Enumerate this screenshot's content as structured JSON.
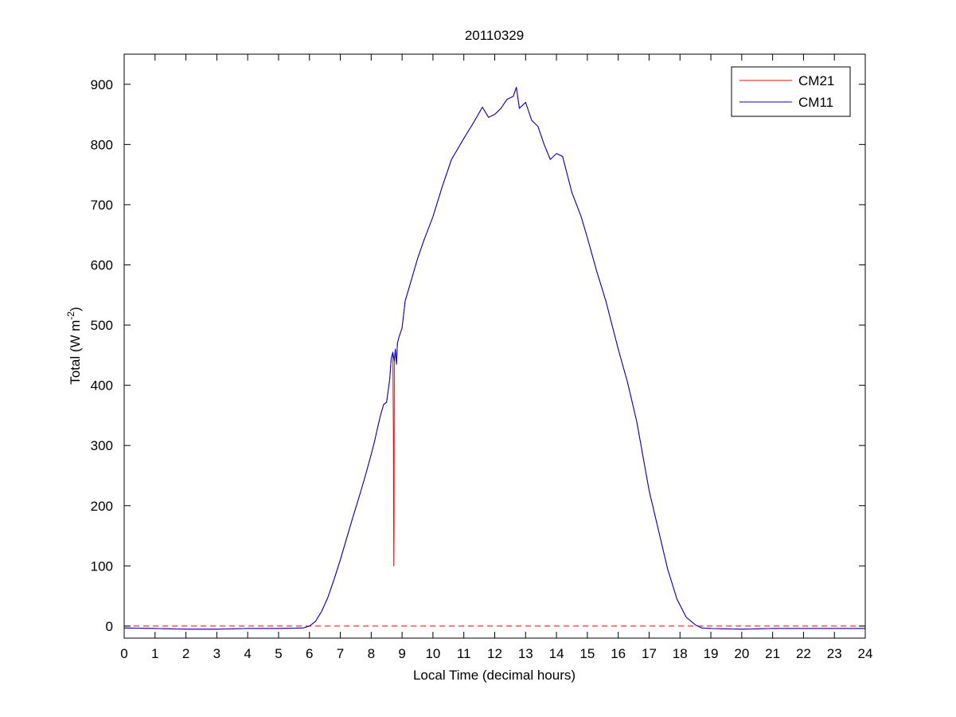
{
  "chart_data": {
    "type": "line",
    "title": "20110329",
    "xlabel": "Local Time (decimal hours)",
    "ylabel": {
      "main": "Total (W m",
      "sup": "-2",
      "end": ")"
    },
    "xlim": [
      0,
      24
    ],
    "ylim": [
      -20,
      950
    ],
    "xticks": [
      0,
      1,
      2,
      3,
      4,
      5,
      6,
      7,
      8,
      9,
      10,
      11,
      12,
      13,
      14,
      15,
      16,
      17,
      18,
      19,
      20,
      21,
      22,
      23,
      24
    ],
    "yticks": [
      0,
      100,
      200,
      300,
      400,
      500,
      600,
      700,
      800,
      900
    ],
    "grid": false,
    "legend": {
      "placement": "top-right",
      "entries": [
        "CM21",
        "CM11"
      ]
    },
    "reference_line": {
      "y": 0,
      "style": "dashed",
      "color": "#ff0000"
    },
    "series": [
      {
        "name": "CM21",
        "color": "#ff0000",
        "points": [
          [
            0,
            -3
          ],
          [
            1,
            -4
          ],
          [
            2,
            -5
          ],
          [
            3,
            -5
          ],
          [
            4,
            -4
          ],
          [
            5,
            -4
          ],
          [
            5.8,
            -3
          ],
          [
            6.0,
            0
          ],
          [
            6.2,
            8
          ],
          [
            6.4,
            25
          ],
          [
            6.6,
            48
          ],
          [
            6.8,
            78
          ],
          [
            7.0,
            110
          ],
          [
            7.2,
            145
          ],
          [
            7.4,
            180
          ],
          [
            7.6,
            213
          ],
          [
            7.8,
            248
          ],
          [
            8.0,
            285
          ],
          [
            8.1,
            305
          ],
          [
            8.2,
            328
          ],
          [
            8.3,
            350
          ],
          [
            8.4,
            368
          ],
          [
            8.5,
            372
          ],
          [
            8.6,
            410
          ],
          [
            8.65,
            445
          ],
          [
            8.7,
            455
          ],
          [
            8.72,
            300
          ],
          [
            8.73,
            100
          ],
          [
            8.74,
            160
          ],
          [
            8.75,
            440
          ],
          [
            8.78,
            460
          ],
          [
            8.82,
            435
          ],
          [
            8.85,
            470
          ],
          [
            8.9,
            480
          ],
          [
            9.0,
            495
          ],
          [
            9.1,
            540
          ],
          [
            9.3,
            575
          ],
          [
            9.5,
            610
          ],
          [
            9.7,
            640
          ],
          [
            10.0,
            680
          ],
          [
            10.3,
            730
          ],
          [
            10.6,
            775
          ],
          [
            11.0,
            810
          ],
          [
            11.3,
            835
          ],
          [
            11.6,
            862
          ],
          [
            11.8,
            845
          ],
          [
            12.0,
            850
          ],
          [
            12.2,
            860
          ],
          [
            12.4,
            875
          ],
          [
            12.6,
            880
          ],
          [
            12.7,
            895
          ],
          [
            12.8,
            860
          ],
          [
            13.0,
            870
          ],
          [
            13.2,
            840
          ],
          [
            13.4,
            830
          ],
          [
            13.6,
            800
          ],
          [
            13.8,
            775
          ],
          [
            14.0,
            785
          ],
          [
            14.2,
            780
          ],
          [
            14.5,
            720
          ],
          [
            14.8,
            680
          ],
          [
            15.0,
            645
          ],
          [
            15.3,
            590
          ],
          [
            15.6,
            540
          ],
          [
            16.0,
            460
          ],
          [
            16.3,
            405
          ],
          [
            16.6,
            340
          ],
          [
            17.0,
            225
          ],
          [
            17.3,
            160
          ],
          [
            17.6,
            95
          ],
          [
            17.9,
            45
          ],
          [
            18.2,
            15
          ],
          [
            18.5,
            2
          ],
          [
            18.7,
            -3
          ],
          [
            19.0,
            -4
          ],
          [
            20.0,
            -5
          ],
          [
            21.0,
            -4
          ],
          [
            22.0,
            -4
          ],
          [
            23.0,
            -4
          ],
          [
            24.0,
            -4
          ]
        ]
      },
      {
        "name": "CM11",
        "color": "#0000cc",
        "points": [
          [
            0,
            -3
          ],
          [
            1,
            -4
          ],
          [
            2,
            -5
          ],
          [
            3,
            -5
          ],
          [
            4,
            -4
          ],
          [
            5,
            -4
          ],
          [
            5.8,
            -3
          ],
          [
            6.0,
            0
          ],
          [
            6.2,
            8
          ],
          [
            6.4,
            25
          ],
          [
            6.6,
            48
          ],
          [
            6.8,
            78
          ],
          [
            7.0,
            110
          ],
          [
            7.2,
            145
          ],
          [
            7.4,
            180
          ],
          [
            7.6,
            213
          ],
          [
            7.8,
            248
          ],
          [
            8.0,
            285
          ],
          [
            8.1,
            305
          ],
          [
            8.2,
            328
          ],
          [
            8.3,
            350
          ],
          [
            8.4,
            368
          ],
          [
            8.5,
            372
          ],
          [
            8.6,
            410
          ],
          [
            8.65,
            445
          ],
          [
            8.7,
            455
          ],
          [
            8.75,
            440
          ],
          [
            8.78,
            460
          ],
          [
            8.82,
            435
          ],
          [
            8.85,
            470
          ],
          [
            8.9,
            480
          ],
          [
            9.0,
            495
          ],
          [
            9.1,
            540
          ],
          [
            9.3,
            575
          ],
          [
            9.5,
            610
          ],
          [
            9.7,
            640
          ],
          [
            10.0,
            680
          ],
          [
            10.3,
            730
          ],
          [
            10.6,
            775
          ],
          [
            11.0,
            810
          ],
          [
            11.3,
            835
          ],
          [
            11.6,
            862
          ],
          [
            11.8,
            845
          ],
          [
            12.0,
            850
          ],
          [
            12.2,
            860
          ],
          [
            12.4,
            875
          ],
          [
            12.6,
            880
          ],
          [
            12.7,
            895
          ],
          [
            12.8,
            860
          ],
          [
            13.0,
            870
          ],
          [
            13.2,
            840
          ],
          [
            13.4,
            830
          ],
          [
            13.6,
            800
          ],
          [
            13.8,
            775
          ],
          [
            14.0,
            785
          ],
          [
            14.2,
            780
          ],
          [
            14.5,
            720
          ],
          [
            14.8,
            680
          ],
          [
            15.0,
            645
          ],
          [
            15.3,
            590
          ],
          [
            15.6,
            540
          ],
          [
            16.0,
            460
          ],
          [
            16.3,
            405
          ],
          [
            16.6,
            340
          ],
          [
            17.0,
            225
          ],
          [
            17.3,
            160
          ],
          [
            17.6,
            95
          ],
          [
            17.9,
            45
          ],
          [
            18.2,
            15
          ],
          [
            18.5,
            2
          ],
          [
            18.7,
            -3
          ],
          [
            19.0,
            -4
          ],
          [
            20.0,
            -5
          ],
          [
            21.0,
            -4
          ],
          [
            22.0,
            -4
          ],
          [
            23.0,
            -4
          ],
          [
            24.0,
            -4
          ]
        ]
      }
    ]
  }
}
